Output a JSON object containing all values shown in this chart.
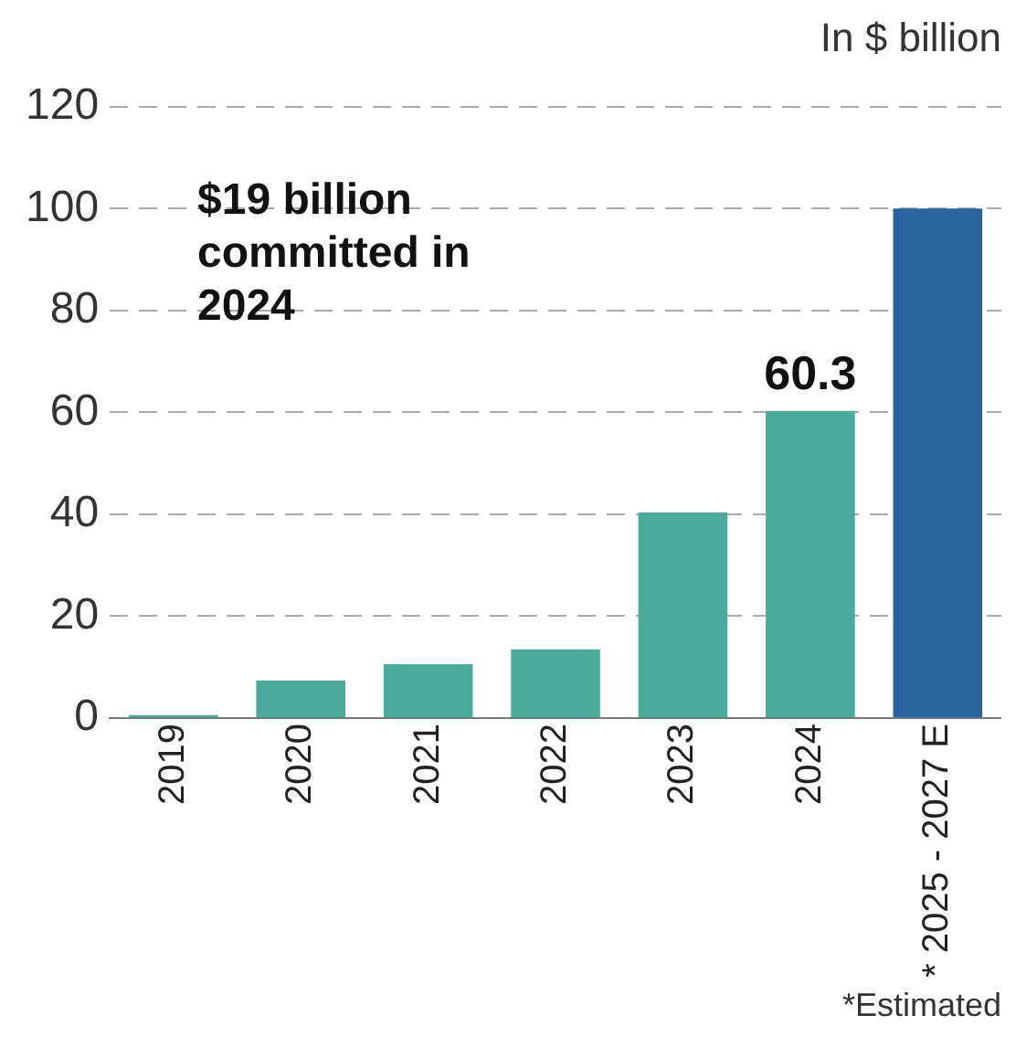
{
  "chart_data": {
    "type": "bar",
    "ylabel": "In $ billion",
    "categories": [
      "2019",
      "2020",
      "2021",
      "2022",
      "2023",
      "2024",
      "* 2025 - 2027 E"
    ],
    "values": [
      0.6,
      7.4,
      10.6,
      13.5,
      40.4,
      60.3,
      100
    ],
    "value_labels": [
      null,
      null,
      null,
      null,
      null,
      "60.3",
      null
    ],
    "colors": [
      "#4aab98",
      "#4aab98",
      "#4aab98",
      "#4aab98",
      "#4aab98",
      "#4aab98",
      "#2a63a0"
    ],
    "ylim": [
      0,
      120
    ],
    "yticks": [
      0,
      20,
      40,
      60,
      80,
      100,
      120
    ],
    "grid": "y",
    "annotations": [
      "$19 billion committed in 2024",
      "*Estimated"
    ]
  }
}
